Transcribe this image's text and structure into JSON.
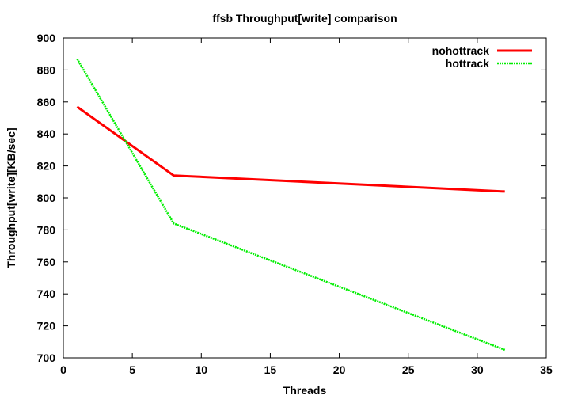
{
  "chart_data": {
    "type": "line",
    "title": "ffsb Throughput[write] comparison",
    "xlabel": "Threads",
    "ylabel": "Throughput[write][KB/sec]",
    "xlim": [
      0,
      35
    ],
    "ylim": [
      700,
      900
    ],
    "xticks": [
      0,
      5,
      10,
      15,
      20,
      25,
      30,
      35
    ],
    "yticks": [
      700,
      720,
      740,
      760,
      780,
      800,
      820,
      840,
      860,
      880,
      900
    ],
    "x": [
      1,
      8,
      32
    ],
    "legend_position": "top-right",
    "grid": false,
    "series": [
      {
        "name": "nohottrack",
        "values": [
          857,
          814,
          804
        ],
        "color": "#ff0000",
        "style": "solid"
      },
      {
        "name": "hottrack",
        "values": [
          887,
          784,
          705
        ],
        "color": "#00ee00",
        "style": "dashed"
      }
    ]
  }
}
